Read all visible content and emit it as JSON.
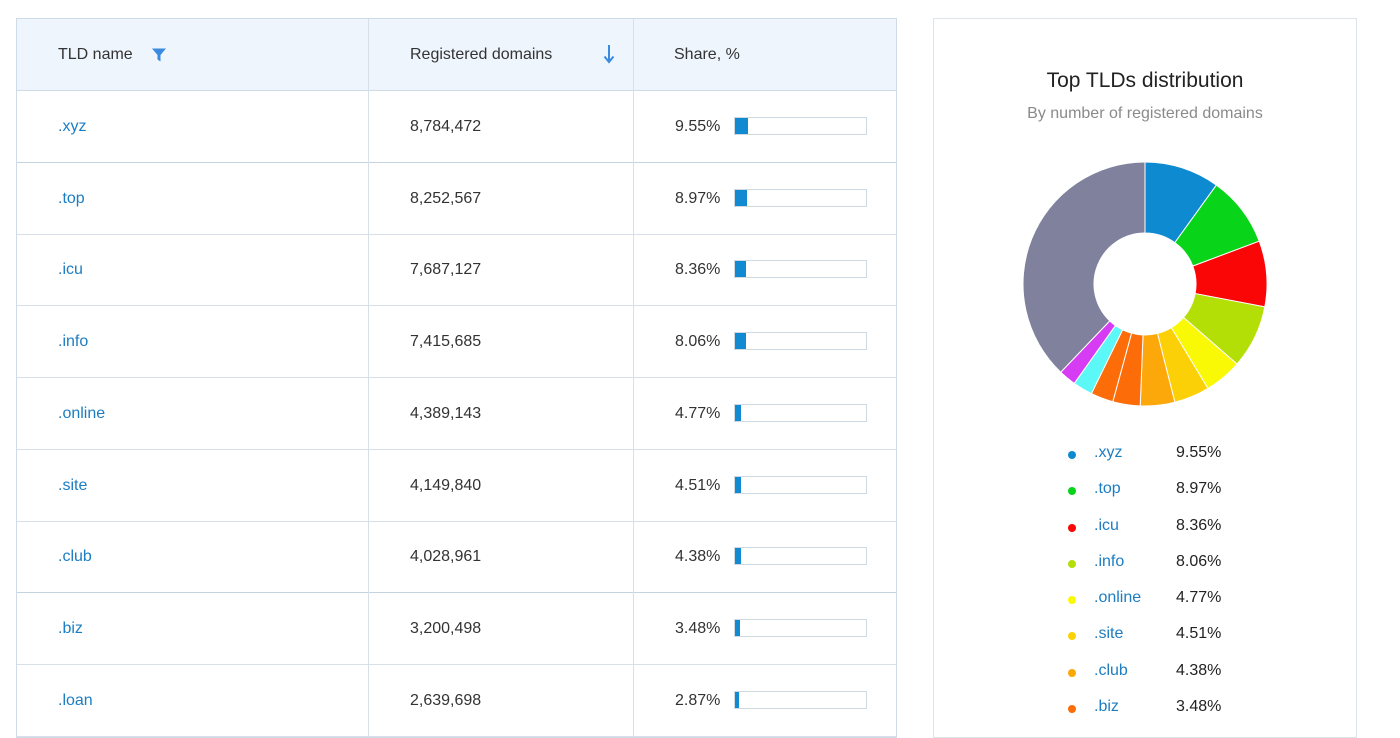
{
  "table": {
    "headers": {
      "tld": "TLD name",
      "registered": "Registered domains",
      "share": "Share, %"
    },
    "rows": [
      {
        "tld": ".xyz",
        "count": "8,784,472",
        "share": "9.55%",
        "share_value": 9.55
      },
      {
        "tld": ".top",
        "count": "8,252,567",
        "share": "8.97%",
        "share_value": 8.97
      },
      {
        "tld": ".icu",
        "count": "7,687,127",
        "share": "8.36%",
        "share_value": 8.36
      },
      {
        "tld": ".info",
        "count": "7,415,685",
        "share": "8.06%",
        "share_value": 8.06
      },
      {
        "tld": ".online",
        "count": "4,389,143",
        "share": "4.77%",
        "share_value": 4.77
      },
      {
        "tld": ".site",
        "count": "4,149,840",
        "share": "4.51%",
        "share_value": 4.51
      },
      {
        "tld": ".club",
        "count": "4,028,961",
        "share": "4.38%",
        "share_value": 4.38
      },
      {
        "tld": ".biz",
        "count": "3,200,498",
        "share": "3.48%",
        "share_value": 3.48
      },
      {
        "tld": ".loan",
        "count": "2,639,698",
        "share": "2.87%",
        "share_value": 2.87
      }
    ]
  },
  "icons": {
    "filter": "filter-icon",
    "sort": "sort-descending-icon"
  },
  "colors": {
    "accent": "#1d7dc2",
    "bar": "#118ad2",
    "header_bg": "#eef5fd"
  },
  "chart": {
    "title": "Top TLDs distribution",
    "subtitle": "By number of registered domains",
    "legend": [
      {
        "label": ".xyz",
        "value": "9.55%"
      },
      {
        "label": ".top",
        "value": "8.97%"
      },
      {
        "label": ".icu",
        "value": "8.36%"
      },
      {
        "label": ".info",
        "value": "8.06%"
      },
      {
        "label": ".online",
        "value": "4.77%"
      },
      {
        "label": ".site",
        "value": "4.51%"
      },
      {
        "label": ".club",
        "value": "4.38%"
      },
      {
        "label": ".biz",
        "value": "3.48%"
      }
    ]
  },
  "chart_data": {
    "type": "pie",
    "title": "Top TLDs distribution",
    "subtitle": "By number of registered domains",
    "categories": [
      ".xyz",
      ".top",
      ".icu",
      ".info",
      ".online",
      ".site",
      ".club",
      ".biz",
      ".loan",
      "",
      "",
      ""
    ],
    "values": [
      9.55,
      8.97,
      8.36,
      8.06,
      4.77,
      4.51,
      4.38,
      3.48,
      2.87,
      2.5,
      2.2,
      36.35
    ],
    "colors": [
      "#0d8ad0",
      "#08d41a",
      "#fb0606",
      "#b3df06",
      "#f9f906",
      "#fcd006",
      "#fca80a",
      "#fc6d0a",
      "#fc6d0a",
      "#5cf7f7",
      "#d63cf3",
      "#80829d"
    ],
    "donut": true,
    "legend_position": "bottom"
  }
}
